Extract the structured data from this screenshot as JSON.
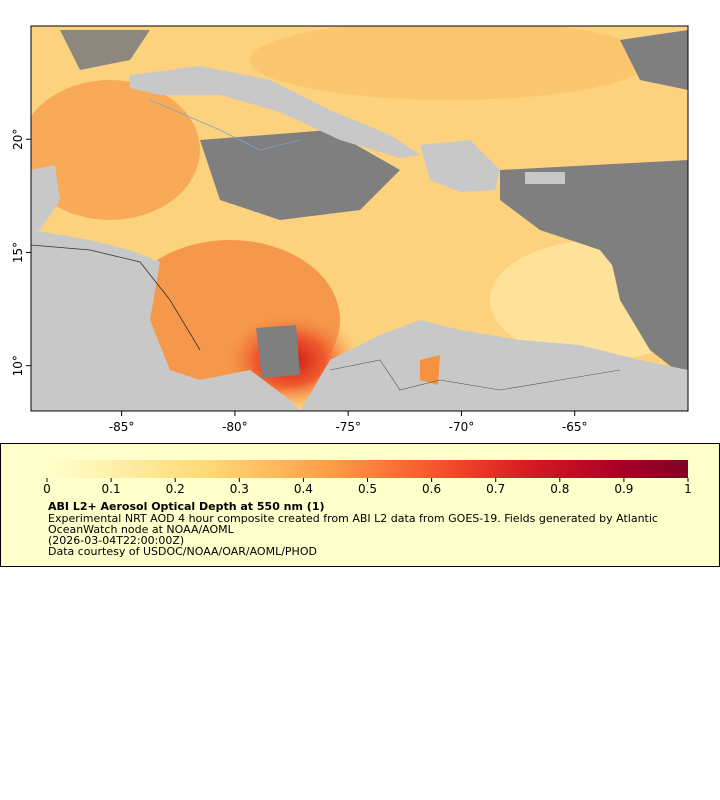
{
  "map": {
    "xlim": [
      -89,
      -60
    ],
    "ylim": [
      8,
      25
    ],
    "xticks": [
      {
        "value": -85,
        "label": "-85°"
      },
      {
        "value": -80,
        "label": "-80°"
      },
      {
        "value": -75,
        "label": "-75°"
      },
      {
        "value": -70,
        "label": "-70°"
      },
      {
        "value": -65,
        "label": "-65°"
      }
    ],
    "yticks": [
      {
        "value": 10,
        "label": "10°"
      },
      {
        "value": 15,
        "label": "15°"
      },
      {
        "value": 20,
        "label": "20°"
      }
    ]
  },
  "colorbar": {
    "lim": [
      0,
      1
    ],
    "ticks": [
      0,
      0.1,
      0.2,
      0.3,
      0.4,
      0.5,
      0.6,
      0.7,
      0.8,
      0.9,
      1
    ]
  },
  "legend": {
    "title": "ABI L2+ Aerosol Optical Depth at 550 nm (1)",
    "lines": [
      "Experimental NRT AOD 4 hour composite created from ABI L2 data from GOES-19. Fields generated by Atlantic",
      "OceanWatch node at NOAA/AOML",
      "(2026-03-04T22:00:00Z)",
      "Data courtesy of USDOC/NOAA/OAR/AOML/PHOD"
    ]
  }
}
